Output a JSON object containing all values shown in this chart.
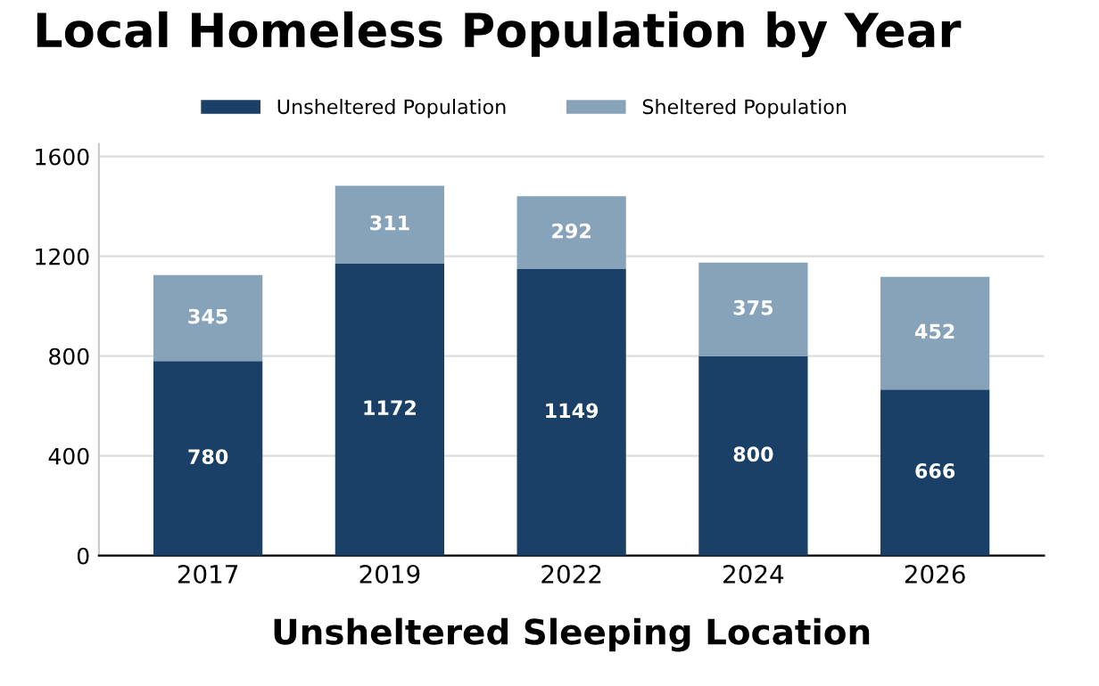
{
  "chart_data": {
    "type": "bar",
    "title": "Local Homeless Population by Year",
    "xlabel": "Unsheltered Sleeping Location",
    "categories": [
      "2017",
      "2019",
      "2022",
      "2024",
      "2026"
    ],
    "series": [
      {
        "name": "Unsheltered Population",
        "color": "#1b4068",
        "values": [
          780,
          1172,
          1149,
          800,
          666
        ]
      },
      {
        "name": "Sheltered Population",
        "color": "#87a3b9",
        "values": [
          345,
          311,
          292,
          375,
          452
        ]
      }
    ],
    "stacked": true,
    "data_labels": true,
    "ylim": [
      0,
      1650
    ],
    "yticks": [
      0,
      400,
      800,
      1200,
      1600
    ],
    "grid": "y",
    "legend": "top"
  }
}
